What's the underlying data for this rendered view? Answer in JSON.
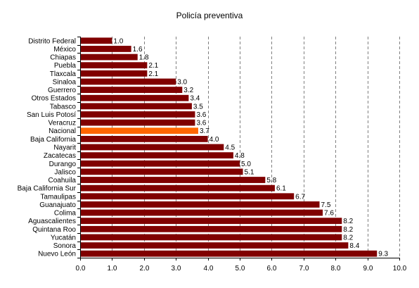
{
  "chart_data": {
    "type": "bar",
    "orientation": "horizontal",
    "title": "Policía preventiva",
    "xlabel": "",
    "ylabel": "",
    "xlim": [
      0,
      10
    ],
    "x_ticks": [
      "0.0",
      "1.0",
      "2.0",
      "3.0",
      "4.0",
      "5.0",
      "6.0",
      "7.0",
      "8.0",
      "9.0",
      "10.0"
    ],
    "grid": "vertical-dashed",
    "legend": "none",
    "bar_color": "#800000",
    "highlight_color": "#ff6600",
    "highlight_category": "Nacional",
    "categories": [
      "Distrito Federal",
      "México",
      "Chiapas",
      "Puebla",
      "Tlaxcala",
      "Sinaloa",
      "Guerrero",
      "Otros Estados",
      "Tabasco",
      "San Luis Potosí",
      "Veracruz",
      "Nacional",
      "Baja California",
      "Nayarit",
      "Zacatecas",
      "Durango",
      "Jalisco",
      "Coahuila",
      "Baja California Sur",
      "Tamaulipas",
      "Guanajuato",
      "Colima",
      "Aguascalientes",
      "Quintana Roo",
      "Yucatán",
      "Sonora",
      "Nuevo León"
    ],
    "values": [
      1.0,
      1.6,
      1.8,
      2.1,
      2.1,
      3.0,
      3.2,
      3.4,
      3.5,
      3.6,
      3.6,
      3.7,
      4.0,
      4.5,
      4.8,
      5.0,
      5.1,
      5.8,
      6.1,
      6.7,
      7.5,
      7.6,
      8.2,
      8.2,
      8.2,
      8.4,
      9.3
    ],
    "value_labels": [
      "1.0",
      "1.6",
      "1.8",
      "2.1",
      "2.1",
      "3.0",
      "3.2",
      "3.4",
      "3.5",
      "3.6",
      "3.6",
      "3.7",
      "4.0",
      "4.5",
      "4.8",
      "5.0",
      "5.1",
      "5.8",
      "6.1",
      "6.7",
      "7.5",
      "7.6",
      "8.2",
      "8.2",
      "8.2",
      "8.4",
      "9.3"
    ]
  }
}
